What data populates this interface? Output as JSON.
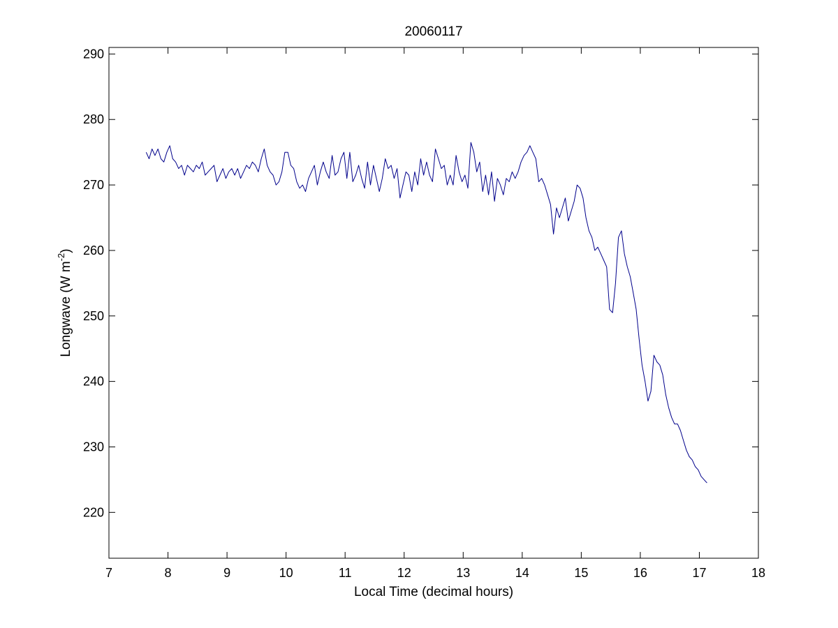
{
  "chart_data": {
    "type": "line",
    "title": "20060117",
    "xlabel": "Local Time (decimal hours)",
    "ylabel": {
      "prefix": "Longwave (W m",
      "superscript": "-2",
      "suffix": ")"
    },
    "xlim": [
      7,
      18
    ],
    "ylim": [
      213,
      291
    ],
    "xticks": [
      7,
      8,
      9,
      10,
      11,
      12,
      13,
      14,
      15,
      16,
      17,
      18
    ],
    "yticks": [
      220,
      230,
      240,
      250,
      260,
      270,
      280,
      290
    ],
    "grid": false,
    "line_color": "#00008b",
    "series": [
      {
        "x": [
          7.63,
          7.68,
          7.73,
          7.78,
          7.83,
          7.88,
          7.93,
          7.98,
          8.03,
          8.08,
          8.13,
          8.18,
          8.23,
          8.28,
          8.33,
          8.38,
          8.43,
          8.48,
          8.53,
          8.58,
          8.63,
          8.68,
          8.73,
          8.78,
          8.83,
          8.88,
          8.93,
          8.98,
          9.03,
          9.08,
          9.13,
          9.18,
          9.23,
          9.28,
          9.33,
          9.38,
          9.43,
          9.48,
          9.53,
          9.58,
          9.63,
          9.68,
          9.73,
          9.78,
          9.83,
          9.88,
          9.93,
          9.98,
          10.03,
          10.08,
          10.13,
          10.18,
          10.23,
          10.28,
          10.33,
          10.38,
          10.43,
          10.48,
          10.53,
          10.58,
          10.63,
          10.68,
          10.73,
          10.78,
          10.83,
          10.88,
          10.93,
          10.98,
          11.03,
          11.08,
          11.13,
          11.18,
          11.23,
          11.28,
          11.33,
          11.38,
          11.43,
          11.48,
          11.53,
          11.58,
          11.63,
          11.68,
          11.73,
          11.78,
          11.83,
          11.88,
          11.93,
          11.98,
          12.03,
          12.08,
          12.13,
          12.18,
          12.23,
          12.28,
          12.33,
          12.38,
          12.43,
          12.48,
          12.53,
          12.58,
          12.63,
          12.68,
          12.73,
          12.78,
          12.83,
          12.88,
          12.93,
          12.98,
          13.03,
          13.08,
          13.13,
          13.18,
          13.23,
          13.28,
          13.33,
          13.38,
          13.43,
          13.48,
          13.53,
          13.58,
          13.63,
          13.68,
          13.73,
          13.78,
          13.83,
          13.88,
          13.93,
          13.98,
          14.03,
          14.08,
          14.13,
          14.18,
          14.23,
          14.28,
          14.33,
          14.38,
          14.43,
          14.48,
          14.53,
          14.58,
          14.63,
          14.68,
          14.73,
          14.78,
          14.83,
          14.88,
          14.93,
          14.98,
          15.03,
          15.08,
          15.13,
          15.18,
          15.23,
          15.28,
          15.33,
          15.38,
          15.43,
          15.48,
          15.53,
          15.58,
          15.63,
          15.68,
          15.73,
          15.78,
          15.83,
          15.88,
          15.93,
          15.98,
          16.03,
          16.08,
          16.13,
          16.18,
          16.23,
          16.28,
          16.33,
          16.38,
          16.43,
          16.48,
          16.53,
          16.58,
          16.63,
          16.68,
          16.73,
          16.78,
          16.83,
          16.88,
          16.93,
          16.98,
          17.03,
          17.08,
          17.13
        ],
        "y": [
          275.0,
          274.0,
          275.5,
          274.5,
          275.5,
          274.0,
          273.5,
          275.0,
          276.0,
          274.0,
          273.5,
          272.5,
          273.0,
          271.5,
          273.0,
          272.5,
          272.0,
          273.0,
          272.5,
          273.5,
          271.5,
          272.0,
          272.5,
          273.0,
          270.5,
          271.5,
          272.5,
          271.0,
          272.0,
          272.5,
          271.5,
          272.5,
          271.0,
          272.0,
          273.0,
          272.5,
          273.5,
          273.0,
          272.0,
          274.0,
          275.5,
          273.0,
          272.0,
          271.5,
          270.0,
          270.5,
          272.0,
          275.0,
          275.0,
          273.0,
          272.5,
          270.5,
          269.5,
          270.0,
          269.0,
          271.0,
          272.0,
          273.0,
          270.0,
          272.0,
          273.5,
          272.0,
          271.0,
          274.5,
          271.5,
          272.0,
          274.0,
          275.0,
          271.0,
          275.0,
          270.5,
          271.5,
          273.0,
          271.0,
          269.5,
          273.5,
          270.0,
          273.0,
          271.0,
          269.0,
          271.0,
          274.0,
          272.5,
          273.0,
          271.0,
          272.5,
          268.0,
          270.0,
          272.0,
          271.5,
          269.0,
          272.0,
          270.0,
          274.0,
          271.5,
          273.5,
          271.5,
          270.5,
          275.5,
          274.0,
          272.5,
          273.0,
          270.0,
          271.5,
          270.0,
          274.5,
          272.0,
          270.5,
          271.5,
          269.5,
          276.5,
          275.0,
          272.0,
          273.5,
          269.0,
          271.5,
          268.5,
          272.0,
          267.5,
          271.0,
          270.0,
          268.5,
          271.0,
          270.5,
          272.0,
          271.0,
          272.0,
          273.5,
          274.5,
          275.0,
          276.0,
          275.0,
          274.0,
          270.5,
          271.0,
          270.0,
          268.5,
          267.0,
          262.5,
          266.5,
          265.0,
          266.5,
          268.0,
          264.5,
          266.0,
          267.5,
          270.0,
          269.5,
          268.0,
          265.0,
          263.0,
          262.0,
          260.0,
          260.5,
          259.5,
          258.5,
          257.5,
          251.0,
          250.5,
          255.0,
          262.0,
          263.0,
          259.5,
          257.5,
          256.0,
          253.5,
          251.0,
          246.5,
          242.5,
          240.0,
          237.0,
          238.5,
          244.0,
          243.0,
          242.5,
          241.0,
          238.0,
          236.0,
          234.5,
          233.5,
          233.5,
          232.5,
          231.0,
          229.5,
          228.5,
          228.0,
          227.0,
          226.5,
          225.5,
          225.0,
          224.5
        ]
      }
    ]
  }
}
